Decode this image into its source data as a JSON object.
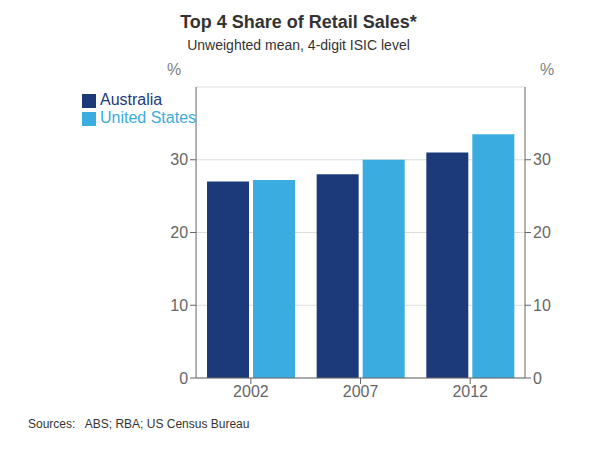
{
  "chart_data": {
    "type": "bar",
    "title": "Top 4 Share of Retail Sales*",
    "subtitle": "Unweighted mean, 4-digit ISIC level",
    "categories": [
      "2002",
      "2007",
      "2012"
    ],
    "series": [
      {
        "name": "Australia",
        "color": "#1C3A7A",
        "values": [
          27.0,
          28.0,
          31.0
        ]
      },
      {
        "name": "United States",
        "color": "#3AACE0",
        "values": [
          27.2,
          30.0,
          33.5
        ]
      }
    ],
    "ylabel": "%",
    "y2label": "%",
    "ylim": [
      0,
      40
    ],
    "yticks": [
      0,
      10,
      20,
      30
    ],
    "y2lim": [
      0,
      40
    ],
    "y2ticks": [
      0,
      10,
      20,
      30
    ],
    "grid": true,
    "legend": "upper left",
    "source": "Sources:   ABS; RBA; US Census Bureau"
  }
}
